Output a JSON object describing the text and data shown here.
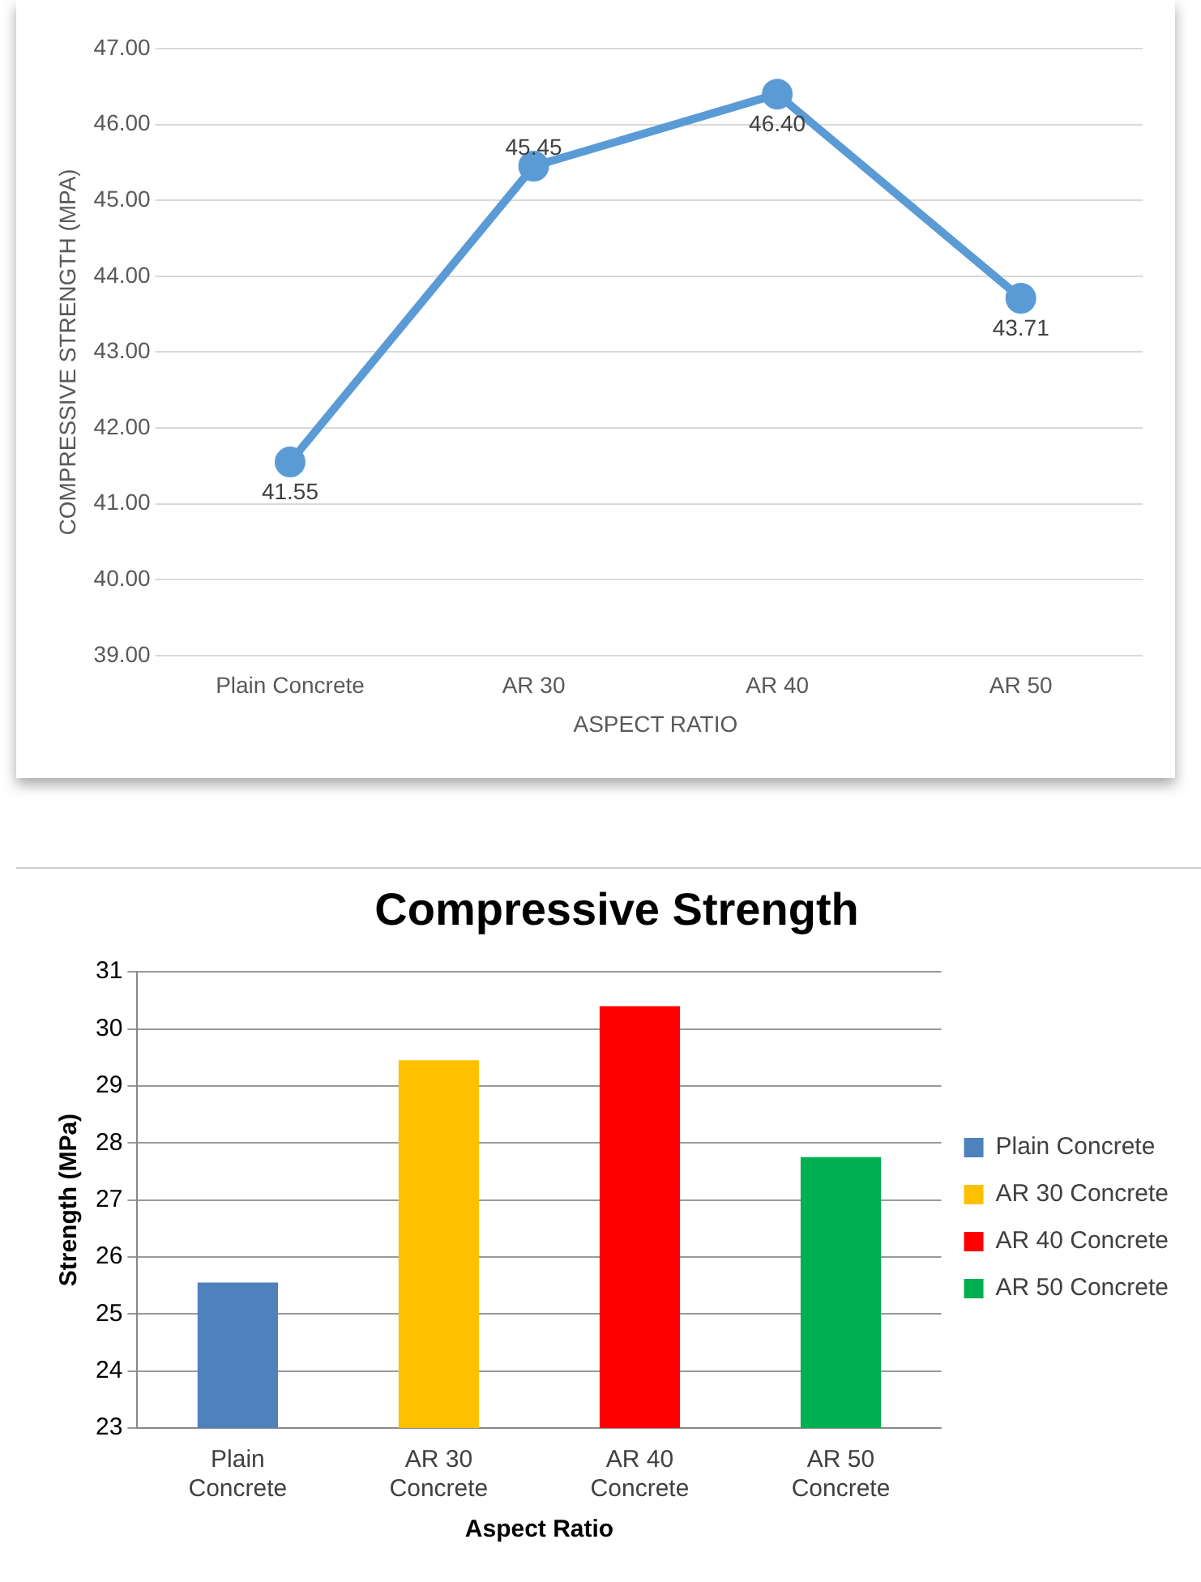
{
  "chart_data": [
    {
      "type": "line",
      "xlabel": "ASPECT RATIO",
      "ylabel": "COMPRESSIVE STRENGTH (MPA)",
      "categories": [
        "Plain Concrete",
        "AR 30",
        "AR 40",
        "AR 50"
      ],
      "series": [
        {
          "color": "#5b9bd5",
          "values": [
            41.55,
            45.45,
            46.4,
            43.71
          ],
          "value_labels": [
            "41.55",
            "45.45",
            "46.40",
            "43.71"
          ]
        }
      ],
      "ylim": [
        39,
        47
      ],
      "yticks": [
        {
          "value": 39,
          "label": "39.00"
        },
        {
          "value": 40,
          "label": "40.00"
        },
        {
          "value": 41,
          "label": "41.00"
        },
        {
          "value": 42,
          "label": "42.00"
        },
        {
          "value": 43,
          "label": "43.00"
        },
        {
          "value": 44,
          "label": "44.00"
        },
        {
          "value": 45,
          "label": "45.00"
        },
        {
          "value": 46,
          "label": "46.00"
        },
        {
          "value": 47,
          "label": "47.00"
        }
      ],
      "grid": "y",
      "marker": "circle",
      "line_style": "solid"
    },
    {
      "type": "bar",
      "title": "Compressive Strength",
      "xlabel": "Aspect Ratio",
      "ylabel": "Strength (MPa)",
      "categories": [
        "Plain Concrete",
        "AR 30 Concrete",
        "AR 40 Concrete",
        "AR 50 Concrete"
      ],
      "series": [
        {
          "name": "Plain Concrete",
          "color": "#4f81bd",
          "values": [
            25.55,
            null,
            null,
            null
          ]
        },
        {
          "name": "AR 30 Concrete",
          "color": "#ffc000",
          "values": [
            null,
            29.45,
            null,
            null
          ]
        },
        {
          "name": "AR 40 Concrete",
          "color": "#ff0000",
          "values": [
            null,
            null,
            30.4,
            null
          ]
        },
        {
          "name": "AR 50 Concrete",
          "color": "#00b050",
          "values": [
            null,
            null,
            null,
            27.75
          ]
        }
      ],
      "ylim": [
        23,
        31
      ],
      "yticks": [
        23,
        24,
        25,
        26,
        27,
        28,
        29,
        30,
        31
      ],
      "grid": "y",
      "legend": "right"
    }
  ]
}
